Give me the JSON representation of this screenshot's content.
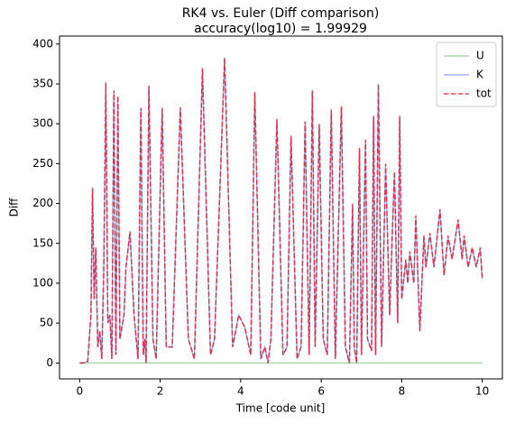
{
  "chart_data": {
    "type": "line",
    "title": [
      "RK4 vs. Euler (Diff comparison)",
      "accuracy(log10) = 1.99929"
    ],
    "x_label": "Time [code unit]",
    "y_label": "Diff",
    "x": [
      0,
      0.1,
      0.2,
      0.28,
      0.32,
      0.36,
      0.4,
      0.45,
      0.5,
      0.55,
      0.6,
      0.65,
      0.7,
      0.75,
      0.8,
      0.85,
      0.9,
      0.95,
      1.0,
      1.1,
      1.15,
      1.25,
      1.35,
      1.45,
      1.52,
      1.58,
      1.62,
      1.65,
      1.72,
      1.82,
      1.9,
      2.05,
      2.15,
      2.3,
      2.5,
      2.7,
      2.85,
      3.05,
      3.25,
      3.35,
      3.6,
      3.8,
      3.95,
      4.1,
      4.25,
      4.35,
      4.5,
      4.6,
      4.68,
      4.75,
      4.9,
      5.05,
      5.15,
      5.25,
      5.4,
      5.5,
      5.6,
      5.7,
      5.78,
      5.85,
      5.95,
      6.05,
      6.15,
      6.25,
      6.35,
      6.5,
      6.6,
      6.7,
      6.78,
      6.82,
      6.88,
      6.95,
      7.0,
      7.1,
      7.15,
      7.25,
      7.3,
      7.35,
      7.42,
      7.5,
      7.6,
      7.7,
      7.75,
      7.82,
      7.9,
      7.95,
      8.0,
      8.1,
      8.15,
      8.2,
      8.3,
      8.35,
      8.45,
      8.55,
      8.6,
      8.7,
      8.8,
      8.95,
      9.05,
      9.15,
      9.25,
      9.4,
      9.5,
      9.55,
      9.65,
      9.75,
      9.85,
      9.95,
      10.0
    ],
    "series": [
      {
        "name": "U",
        "color": "#2ca02c",
        "opacity": 0.4,
        "linestyle": "solid",
        "values": [
          0,
          0,
          0,
          0,
          0,
          0,
          0,
          0,
          0,
          0,
          0,
          0,
          0,
          0,
          0,
          0,
          0,
          0,
          0,
          0,
          0,
          0,
          0,
          0,
          0,
          0,
          0,
          0,
          0,
          0,
          0,
          0,
          0,
          0,
          0,
          0,
          0,
          0,
          0,
          0,
          0,
          0,
          0,
          0,
          0,
          0,
          0,
          0,
          0,
          0,
          0,
          0,
          0,
          0,
          0,
          0,
          0,
          0,
          0,
          0,
          0,
          0,
          0,
          0,
          0,
          0,
          0,
          0,
          0,
          0,
          0,
          0,
          0,
          0,
          0,
          0,
          0,
          0,
          0,
          0,
          0,
          0,
          0,
          0,
          0,
          0,
          0,
          0,
          0,
          0,
          0,
          0,
          0,
          0,
          0,
          0,
          0,
          0,
          0,
          0,
          0,
          0,
          0,
          0,
          0,
          0,
          0,
          0,
          0
        ]
      },
      {
        "name": "K",
        "color": "#1f3fff",
        "opacity": 0.4,
        "linestyle": "solid",
        "values": [
          0,
          0,
          2,
          60,
          218,
          80,
          143,
          20,
          40,
          5,
          120,
          350,
          50,
          60,
          5,
          340,
          10,
          333,
          30,
          60,
          120,
          163,
          60,
          5,
          318,
          10,
          30,
          0,
          346,
          30,
          5,
          318,
          20,
          20,
          319,
          30,
          5,
          368,
          10,
          30,
          381,
          20,
          60,
          45,
          10,
          338,
          5,
          20,
          0,
          30,
          304,
          10,
          20,
          283,
          5,
          20,
          301,
          10,
          340,
          20,
          298,
          30,
          10,
          316,
          5,
          320,
          20,
          0,
          198,
          20,
          0,
          268,
          10,
          278,
          30,
          15,
          308,
          10,
          348,
          20,
          248,
          60,
          138,
          238,
          50,
          308,
          80,
          128,
          100,
          138,
          100,
          183,
          40,
          158,
          120,
          161,
          120,
          191,
          110,
          158,
          130,
          178,
          130,
          158,
          120,
          143,
          120,
          143,
          105
        ]
      },
      {
        "name": "tot",
        "color": "#e8000b",
        "opacity": 0.7,
        "linestyle": "dashed",
        "values": [
          0,
          0,
          2,
          60,
          220,
          80,
          145,
          20,
          40,
          5,
          120,
          352,
          50,
          60,
          5,
          342,
          10,
          335,
          30,
          60,
          120,
          165,
          60,
          5,
          320,
          10,
          30,
          0,
          348,
          30,
          5,
          320,
          20,
          20,
          321,
          30,
          5,
          370,
          10,
          30,
          383,
          20,
          60,
          45,
          10,
          340,
          5,
          20,
          0,
          30,
          306,
          10,
          20,
          285,
          5,
          20,
          303,
          10,
          342,
          20,
          300,
          30,
          10,
          318,
          5,
          322,
          20,
          0,
          200,
          20,
          0,
          270,
          10,
          280,
          30,
          15,
          310,
          10,
          350,
          20,
          250,
          60,
          140,
          240,
          50,
          310,
          80,
          130,
          100,
          140,
          100,
          185,
          40,
          160,
          120,
          163,
          120,
          193,
          110,
          160,
          130,
          180,
          130,
          160,
          120,
          145,
          120,
          145,
          107
        ]
      }
    ],
    "xlim": [
      -0.5,
      10.5
    ],
    "xticks": [
      0,
      2,
      4,
      6,
      8,
      10
    ],
    "ylim": [
      -20,
      410
    ],
    "yticks": [
      0,
      50,
      100,
      150,
      200,
      250,
      300,
      350,
      400
    ],
    "grid": false,
    "legend": "upper right"
  }
}
